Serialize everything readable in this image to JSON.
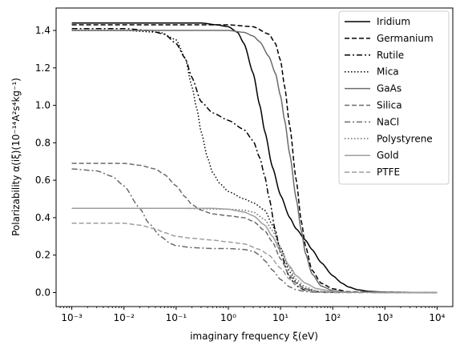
{
  "chart_data": {
    "type": "line",
    "title": "",
    "xlabel": "imaginary frequency ξ(eV)",
    "ylabel": "Polarizability α(iξ)(10⁻¹⁴A²s⁴kg⁻¹)",
    "xscale": "log",
    "xlim": [
      0.0005,
      20000
    ],
    "ylim": [
      -0.075,
      1.52
    ],
    "legend_position": "top-right",
    "grid": false,
    "xticks": [
      {
        "value": 0.001,
        "label": "10⁻³"
      },
      {
        "value": 0.01,
        "label": "10⁻²"
      },
      {
        "value": 0.1,
        "label": "10⁻¹"
      },
      {
        "value": 1,
        "label": "10⁰"
      },
      {
        "value": 10,
        "label": "10¹"
      },
      {
        "value": 100,
        "label": "10²"
      },
      {
        "value": 1000,
        "label": "10³"
      },
      {
        "value": 10000,
        "label": "10⁴"
      }
    ],
    "yticks": [
      {
        "value": 0.0,
        "label": "0.0"
      },
      {
        "value": 0.2,
        "label": "0.2"
      },
      {
        "value": 0.4,
        "label": "0.4"
      },
      {
        "value": 0.6,
        "label": "0.6"
      },
      {
        "value": 0.8,
        "label": "0.8"
      },
      {
        "value": 1.0,
        "label": "1.0"
      },
      {
        "value": 1.2,
        "label": "1.2"
      },
      {
        "value": 1.4,
        "label": "1.4"
      }
    ],
    "series": [
      {
        "name": "Iridium",
        "color": "#000000",
        "dash": "solid",
        "x": [
          0.001,
          0.01,
          0.1,
          0.3,
          0.6,
          1,
          1.5,
          2,
          3,
          4,
          5,
          7,
          10,
          15,
          20,
          30,
          40,
          60,
          100,
          150,
          200,
          300,
          500,
          1000,
          10000
        ],
        "y": [
          1.44,
          1.44,
          1.44,
          1.44,
          1.43,
          1.42,
          1.39,
          1.33,
          1.17,
          1.0,
          0.86,
          0.67,
          0.52,
          0.4,
          0.34,
          0.28,
          0.23,
          0.16,
          0.09,
          0.05,
          0.03,
          0.015,
          0.006,
          0.002,
          0.0
        ]
      },
      {
        "name": "Germanium",
        "color": "#000000",
        "dash": "dashed",
        "x": [
          0.001,
          0.1,
          1,
          3,
          6,
          8,
          10,
          12,
          15,
          20,
          25,
          30,
          40,
          60,
          100,
          200,
          10000
        ],
        "y": [
          1.43,
          1.43,
          1.43,
          1.42,
          1.38,
          1.33,
          1.24,
          1.1,
          0.89,
          0.6,
          0.38,
          0.25,
          0.12,
          0.05,
          0.02,
          0.004,
          0.0
        ]
      },
      {
        "name": "Rutile",
        "color": "#000000",
        "dash": "dashdot",
        "x": [
          0.001,
          0.01,
          0.03,
          0.06,
          0.1,
          0.15,
          0.2,
          0.3,
          0.5,
          1,
          2,
          3,
          4,
          5,
          6,
          8,
          10,
          15,
          20,
          30,
          50,
          100,
          10000
        ],
        "y": [
          1.41,
          1.41,
          1.4,
          1.38,
          1.33,
          1.25,
          1.15,
          1.02,
          0.96,
          0.92,
          0.87,
          0.81,
          0.72,
          0.62,
          0.51,
          0.33,
          0.21,
          0.08,
          0.035,
          0.012,
          0.003,
          0.001,
          0.0
        ]
      },
      {
        "name": "Mica",
        "color": "#000000",
        "dash": "dotted",
        "x": [
          0.001,
          0.01,
          0.05,
          0.1,
          0.15,
          0.2,
          0.25,
          0.3,
          0.4,
          0.5,
          0.7,
          1,
          2,
          3,
          5,
          7,
          10,
          15,
          20,
          30,
          50,
          100,
          10000
        ],
        "y": [
          1.4,
          1.4,
          1.39,
          1.35,
          1.25,
          1.1,
          0.98,
          0.86,
          0.72,
          0.64,
          0.58,
          0.54,
          0.5,
          0.48,
          0.44,
          0.36,
          0.24,
          0.11,
          0.055,
          0.02,
          0.006,
          0.001,
          0.0
        ]
      },
      {
        "name": "GaAs",
        "color": "#6b6b6b",
        "dash": "solid",
        "x": [
          0.001,
          0.1,
          1,
          2,
          3,
          4,
          6,
          8,
          10,
          12,
          15,
          20,
          25,
          30,
          40,
          60,
          100,
          200,
          10000
        ],
        "y": [
          1.4,
          1.4,
          1.4,
          1.39,
          1.37,
          1.34,
          1.26,
          1.17,
          1.05,
          0.92,
          0.74,
          0.5,
          0.33,
          0.21,
          0.1,
          0.035,
          0.01,
          0.002,
          0.0
        ]
      },
      {
        "name": "Silica",
        "color": "#6b6b6b",
        "dash": "dashed",
        "x": [
          0.001,
          0.01,
          0.02,
          0.04,
          0.06,
          0.1,
          0.15,
          0.2,
          0.3,
          0.5,
          1,
          2,
          3,
          5,
          7,
          10,
          15,
          20,
          30,
          50,
          100,
          10000
        ],
        "y": [
          0.69,
          0.69,
          0.68,
          0.66,
          0.63,
          0.57,
          0.51,
          0.47,
          0.44,
          0.42,
          0.41,
          0.4,
          0.38,
          0.33,
          0.27,
          0.18,
          0.09,
          0.05,
          0.02,
          0.006,
          0.001,
          0.0
        ]
      },
      {
        "name": "NaCl",
        "color": "#6b6b6b",
        "dash": "dashdot",
        "x": [
          0.001,
          0.003,
          0.006,
          0.01,
          0.02,
          0.03,
          0.05,
          0.08,
          0.1,
          0.2,
          0.5,
          1,
          2,
          3,
          4,
          5,
          7,
          10,
          15,
          20,
          30,
          50,
          100,
          10000
        ],
        "y": [
          0.66,
          0.65,
          0.62,
          0.57,
          0.45,
          0.37,
          0.3,
          0.26,
          0.25,
          0.24,
          0.235,
          0.235,
          0.23,
          0.22,
          0.2,
          0.17,
          0.12,
          0.07,
          0.03,
          0.015,
          0.005,
          0.001,
          0.0,
          0.0
        ]
      },
      {
        "name": "Polystyrene",
        "color": "#6b6b6b",
        "dash": "dotted",
        "x": [
          0.001,
          0.1,
          1,
          2,
          3,
          5,
          7,
          10,
          15,
          20,
          30,
          50,
          100,
          10000
        ],
        "y": [
          0.45,
          0.45,
          0.445,
          0.44,
          0.43,
          0.39,
          0.33,
          0.24,
          0.13,
          0.07,
          0.03,
          0.008,
          0.001,
          0.0
        ]
      },
      {
        "name": "Gold",
        "color": "#9e9e9e",
        "dash": "solid",
        "x": [
          0.001,
          0.1,
          0.5,
          1,
          2,
          3,
          5,
          7,
          10,
          15,
          20,
          30,
          50,
          100,
          200,
          10000
        ],
        "y": [
          0.45,
          0.45,
          0.45,
          0.445,
          0.43,
          0.41,
          0.36,
          0.3,
          0.22,
          0.14,
          0.09,
          0.05,
          0.02,
          0.006,
          0.001,
          0.0
        ]
      },
      {
        "name": "PTFE",
        "color": "#9e9e9e",
        "dash": "dashed",
        "x": [
          0.001,
          0.003,
          0.01,
          0.02,
          0.04,
          0.06,
          0.1,
          0.2,
          0.5,
          1,
          2,
          4,
          6,
          10,
          15,
          20,
          30,
          50,
          100,
          10000
        ],
        "y": [
          0.37,
          0.37,
          0.37,
          0.36,
          0.34,
          0.32,
          0.3,
          0.29,
          0.28,
          0.27,
          0.26,
          0.23,
          0.2,
          0.13,
          0.07,
          0.04,
          0.015,
          0.004,
          0.001,
          0.0
        ]
      }
    ]
  }
}
